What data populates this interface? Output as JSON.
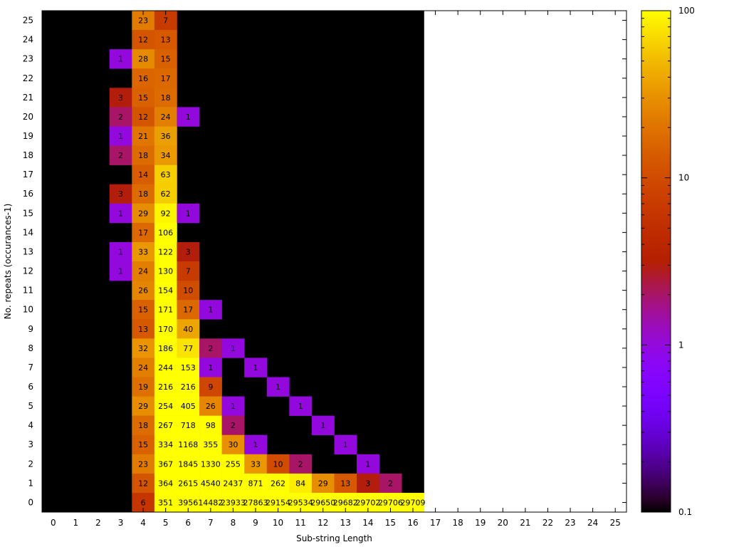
{
  "chart_data": {
    "type": "heatmap",
    "title": "",
    "xlabel": "Sub-string Length",
    "ylabel": "No. repeats (occurances-1)",
    "x_ticks": [
      0,
      1,
      2,
      3,
      4,
      5,
      6,
      7,
      8,
      9,
      10,
      11,
      12,
      13,
      14,
      15,
      16,
      17,
      18,
      19,
      20,
      21,
      22,
      23,
      24,
      25
    ],
    "y_ticks": [
      0,
      1,
      2,
      3,
      4,
      5,
      6,
      7,
      8,
      9,
      10,
      11,
      12,
      13,
      14,
      15,
      16,
      17,
      18,
      19,
      20,
      21,
      22,
      23,
      24,
      25
    ],
    "xlim": [
      -0.5,
      25.5
    ],
    "ylim": [
      -0.5,
      25.5
    ],
    "colorbar": {
      "scale": "log",
      "min": 0.1,
      "max": 100,
      "tick_labels": [
        "0.1",
        "1",
        "10",
        "100"
      ],
      "tick_values": [
        0.1,
        1,
        10,
        100
      ],
      "palette": "black-blue-violet-red-orange-yellow"
    },
    "background_value": 0,
    "data_extent_x": [
      0,
      16
    ],
    "cells": [
      {
        "x": 4,
        "y": 25,
        "v": 23
      },
      {
        "x": 5,
        "y": 25,
        "v": 7
      },
      {
        "x": 4,
        "y": 24,
        "v": 12
      },
      {
        "x": 5,
        "y": 24,
        "v": 13
      },
      {
        "x": 3,
        "y": 23,
        "v": 1
      },
      {
        "x": 4,
        "y": 23,
        "v": 28
      },
      {
        "x": 5,
        "y": 23,
        "v": 15
      },
      {
        "x": 4,
        "y": 22,
        "v": 16
      },
      {
        "x": 5,
        "y": 22,
        "v": 17
      },
      {
        "x": 3,
        "y": 21,
        "v": 3
      },
      {
        "x": 4,
        "y": 21,
        "v": 15
      },
      {
        "x": 5,
        "y": 21,
        "v": 18
      },
      {
        "x": 3,
        "y": 20,
        "v": 2
      },
      {
        "x": 4,
        "y": 20,
        "v": 12
      },
      {
        "x": 5,
        "y": 20,
        "v": 24
      },
      {
        "x": 6,
        "y": 20,
        "v": 1
      },
      {
        "x": 3,
        "y": 19,
        "v": 1
      },
      {
        "x": 4,
        "y": 19,
        "v": 21
      },
      {
        "x": 5,
        "y": 19,
        "v": 36
      },
      {
        "x": 3,
        "y": 18,
        "v": 2
      },
      {
        "x": 4,
        "y": 18,
        "v": 18
      },
      {
        "x": 5,
        "y": 18,
        "v": 34
      },
      {
        "x": 4,
        "y": 17,
        "v": 14
      },
      {
        "x": 5,
        "y": 17,
        "v": 63
      },
      {
        "x": 3,
        "y": 16,
        "v": 3
      },
      {
        "x": 4,
        "y": 16,
        "v": 18
      },
      {
        "x": 5,
        "y": 16,
        "v": 62
      },
      {
        "x": 3,
        "y": 15,
        "v": 1
      },
      {
        "x": 4,
        "y": 15,
        "v": 29
      },
      {
        "x": 5,
        "y": 15,
        "v": 92
      },
      {
        "x": 6,
        "y": 15,
        "v": 1
      },
      {
        "x": 4,
        "y": 14,
        "v": 17
      },
      {
        "x": 5,
        "y": 14,
        "v": 106
      },
      {
        "x": 3,
        "y": 13,
        "v": 1
      },
      {
        "x": 4,
        "y": 13,
        "v": 33
      },
      {
        "x": 5,
        "y": 13,
        "v": 122
      },
      {
        "x": 6,
        "y": 13,
        "v": 3
      },
      {
        "x": 3,
        "y": 12,
        "v": 1
      },
      {
        "x": 4,
        "y": 12,
        "v": 24
      },
      {
        "x": 5,
        "y": 12,
        "v": 130
      },
      {
        "x": 6,
        "y": 12,
        "v": 7
      },
      {
        "x": 4,
        "y": 11,
        "v": 26
      },
      {
        "x": 5,
        "y": 11,
        "v": 154
      },
      {
        "x": 6,
        "y": 11,
        "v": 10
      },
      {
        "x": 4,
        "y": 10,
        "v": 15
      },
      {
        "x": 5,
        "y": 10,
        "v": 171
      },
      {
        "x": 6,
        "y": 10,
        "v": 17
      },
      {
        "x": 7,
        "y": 10,
        "v": 1
      },
      {
        "x": 4,
        "y": 9,
        "v": 13
      },
      {
        "x": 5,
        "y": 9,
        "v": 170
      },
      {
        "x": 6,
        "y": 9,
        "v": 40
      },
      {
        "x": 4,
        "y": 8,
        "v": 32
      },
      {
        "x": 5,
        "y": 8,
        "v": 186
      },
      {
        "x": 6,
        "y": 8,
        "v": 77
      },
      {
        "x": 7,
        "y": 8,
        "v": 2
      },
      {
        "x": 8,
        "y": 8,
        "v": 1
      },
      {
        "x": 4,
        "y": 7,
        "v": 24
      },
      {
        "x": 5,
        "y": 7,
        "v": 244
      },
      {
        "x": 6,
        "y": 7,
        "v": 153
      },
      {
        "x": 7,
        "y": 7,
        "v": 1
      },
      {
        "x": 9,
        "y": 7,
        "v": 1
      },
      {
        "x": 4,
        "y": 6,
        "v": 19
      },
      {
        "x": 5,
        "y": 6,
        "v": 216
      },
      {
        "x": 6,
        "y": 6,
        "v": 216
      },
      {
        "x": 7,
        "y": 6,
        "v": 9
      },
      {
        "x": 10,
        "y": 6,
        "v": 1
      },
      {
        "x": 4,
        "y": 5,
        "v": 29
      },
      {
        "x": 5,
        "y": 5,
        "v": 254
      },
      {
        "x": 6,
        "y": 5,
        "v": 405
      },
      {
        "x": 7,
        "y": 5,
        "v": 26
      },
      {
        "x": 8,
        "y": 5,
        "v": 1
      },
      {
        "x": 11,
        "y": 5,
        "v": 1
      },
      {
        "x": 4,
        "y": 4,
        "v": 18
      },
      {
        "x": 5,
        "y": 4,
        "v": 267
      },
      {
        "x": 6,
        "y": 4,
        "v": 718
      },
      {
        "x": 7,
        "y": 4,
        "v": 98
      },
      {
        "x": 8,
        "y": 4,
        "v": 2
      },
      {
        "x": 12,
        "y": 4,
        "v": 1
      },
      {
        "x": 4,
        "y": 3,
        "v": 15
      },
      {
        "x": 5,
        "y": 3,
        "v": 334
      },
      {
        "x": 6,
        "y": 3,
        "v": 1168
      },
      {
        "x": 7,
        "y": 3,
        "v": 355
      },
      {
        "x": 8,
        "y": 3,
        "v": 30
      },
      {
        "x": 9,
        "y": 3,
        "v": 1
      },
      {
        "x": 13,
        "y": 3,
        "v": 1
      },
      {
        "x": 4,
        "y": 2,
        "v": 23
      },
      {
        "x": 5,
        "y": 2,
        "v": 367
      },
      {
        "x": 6,
        "y": 2,
        "v": 1845
      },
      {
        "x": 7,
        "y": 2,
        "v": 1330
      },
      {
        "x": 8,
        "y": 2,
        "v": 255
      },
      {
        "x": 9,
        "y": 2,
        "v": 33
      },
      {
        "x": 10,
        "y": 2,
        "v": 10
      },
      {
        "x": 11,
        "y": 2,
        "v": 2
      },
      {
        "x": 14,
        "y": 2,
        "v": 1
      },
      {
        "x": 4,
        "y": 1,
        "v": 12
      },
      {
        "x": 5,
        "y": 1,
        "v": 364
      },
      {
        "x": 6,
        "y": 1,
        "v": 2615
      },
      {
        "x": 7,
        "y": 1,
        "v": 4540
      },
      {
        "x": 8,
        "y": 1,
        "v": 2437
      },
      {
        "x": 9,
        "y": 1,
        "v": 871
      },
      {
        "x": 10,
        "y": 1,
        "v": 262
      },
      {
        "x": 11,
        "y": 1,
        "v": 84
      },
      {
        "x": 12,
        "y": 1,
        "v": 29
      },
      {
        "x": 13,
        "y": 1,
        "v": 13
      },
      {
        "x": 14,
        "y": 1,
        "v": 3
      },
      {
        "x": 15,
        "y": 1,
        "v": 2
      },
      {
        "x": 4,
        "y": 0,
        "v": 6
      },
      {
        "x": 5,
        "y": 0,
        "v": 351
      },
      {
        "x": 6,
        "y": 0,
        "v": 3956
      },
      {
        "x": 7,
        "y": 0,
        "v": 14482
      },
      {
        "x": 8,
        "y": 0,
        "v": 23933
      },
      {
        "x": 9,
        "y": 0,
        "v": 27863
      },
      {
        "x": 10,
        "y": 0,
        "v": 29154
      },
      {
        "x": 11,
        "y": 0,
        "v": 29534
      },
      {
        "x": 12,
        "y": 0,
        "v": 29650
      },
      {
        "x": 13,
        "y": 0,
        "v": 29682
      },
      {
        "x": 14,
        "y": 0,
        "v": 29702
      },
      {
        "x": 15,
        "y": 0,
        "v": 29706
      },
      {
        "x": 16,
        "y": 0,
        "v": 29709
      }
    ]
  }
}
